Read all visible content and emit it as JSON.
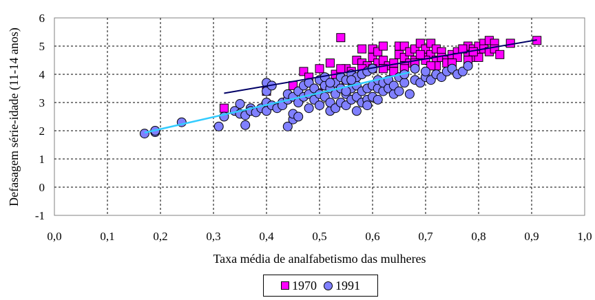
{
  "chart_data": {
    "type": "scatter",
    "title": "",
    "xlabel": "Taxa média de analfabetismo das mulheres",
    "ylabel": "Defasagem série-idade (11-14 anos)",
    "xlim": [
      0,
      1
    ],
    "ylim": [
      -1,
      6
    ],
    "x_ticks": [
      "0,0",
      "0,1",
      "0,2",
      "0,3",
      "0,4",
      "0,5",
      "0,6",
      "0,7",
      "0,8",
      "0,9",
      "1,0"
    ],
    "y_ticks": [
      "-1",
      "0",
      "1",
      "2",
      "3",
      "4",
      "5",
      "6"
    ],
    "grid": "dashed",
    "legend_position": "bottom",
    "series": [
      {
        "name": "1970",
        "marker": "square",
        "color": "#ff00ff",
        "trend_color": "#000066",
        "trend": [
          [
            0.32,
            3.33
          ],
          [
            0.91,
            5.22
          ]
        ],
        "x": [
          0.32,
          0.4,
          0.45,
          0.47,
          0.48,
          0.5,
          0.51,
          0.52,
          0.53,
          0.54,
          0.55,
          0.55,
          0.56,
          0.57,
          0.58,
          0.58,
          0.59,
          0.6,
          0.6,
          0.61,
          0.61,
          0.62,
          0.62,
          0.63,
          0.64,
          0.65,
          0.65,
          0.66,
          0.66,
          0.67,
          0.67,
          0.68,
          0.68,
          0.69,
          0.7,
          0.7,
          0.71,
          0.71,
          0.72,
          0.72,
          0.73,
          0.73,
          0.74,
          0.75,
          0.75,
          0.76,
          0.77,
          0.78,
          0.78,
          0.79,
          0.79,
          0.8,
          0.8,
          0.81,
          0.81,
          0.82,
          0.82,
          0.83,
          0.83,
          0.84,
          0.86,
          0.91,
          0.6,
          0.62,
          0.64,
          0.66,
          0.68,
          0.7,
          0.72,
          0.74,
          0.76,
          0.78,
          0.8,
          0.56,
          0.58,
          0.54,
          0.66,
          0.69,
          0.71,
          0.75,
          0.77,
          0.79
        ],
        "y": [
          2.8,
          3.4,
          3.6,
          4.1,
          3.9,
          4.2,
          3.6,
          4.4,
          4.0,
          5.3,
          3.8,
          4.2,
          4.1,
          4.5,
          4.9,
          4.4,
          4.3,
          4.9,
          4.6,
          4.8,
          4.4,
          5.0,
          4.5,
          4.3,
          4.4,
          4.7,
          5.0,
          4.6,
          5.0,
          4.8,
          4.4,
          4.5,
          4.9,
          5.1,
          4.6,
          4.9,
          4.7,
          5.1,
          4.5,
          4.9,
          4.8,
          4.6,
          4.5,
          4.7,
          4.2,
          4.8,
          4.9,
          4.7,
          5.0,
          4.9,
          4.6,
          5.0,
          4.7,
          5.1,
          4.9,
          5.2,
          4.8,
          5.1,
          4.9,
          4.7,
          5.1,
          5.2,
          4.2,
          4.2,
          4.1,
          4.3,
          4.4,
          4.5,
          4.3,
          4.4,
          4.6,
          4.5,
          4.6,
          3.9,
          4.2,
          4.2,
          4.2,
          4.7,
          4.3,
          4.4,
          4.9,
          4.8
        ]
      },
      {
        "name": "1991",
        "marker": "circle",
        "color": "#8080ff",
        "trend_color": "#33ccff",
        "trend": [
          [
            0.17,
            1.93
          ],
          [
            0.67,
            4.07
          ]
        ],
        "x": [
          0.17,
          0.19,
          0.19,
          0.24,
          0.31,
          0.32,
          0.34,
          0.35,
          0.35,
          0.36,
          0.36,
          0.37,
          0.37,
          0.38,
          0.39,
          0.4,
          0.4,
          0.4,
          0.4,
          0.41,
          0.41,
          0.42,
          0.43,
          0.43,
          0.44,
          0.44,
          0.44,
          0.45,
          0.45,
          0.45,
          0.46,
          0.46,
          0.46,
          0.47,
          0.47,
          0.48,
          0.48,
          0.48,
          0.49,
          0.49,
          0.5,
          0.5,
          0.5,
          0.51,
          0.51,
          0.51,
          0.52,
          0.52,
          0.52,
          0.53,
          0.53,
          0.53,
          0.54,
          0.54,
          0.54,
          0.55,
          0.55,
          0.55,
          0.56,
          0.56,
          0.56,
          0.57,
          0.57,
          0.57,
          0.58,
          0.58,
          0.58,
          0.59,
          0.59,
          0.59,
          0.6,
          0.6,
          0.6,
          0.61,
          0.61,
          0.62,
          0.62,
          0.63,
          0.63,
          0.64,
          0.64,
          0.65,
          0.65,
          0.66,
          0.66,
          0.67,
          0.68,
          0.68,
          0.69,
          0.7,
          0.7,
          0.71,
          0.72,
          0.73,
          0.74,
          0.75,
          0.76,
          0.77,
          0.78,
          0.52,
          0.55,
          0.57,
          0.59,
          0.61,
          0.56
        ],
        "y": [
          1.9,
          1.95,
          2.0,
          2.3,
          2.15,
          2.5,
          2.7,
          2.6,
          2.95,
          2.2,
          2.55,
          2.8,
          2.7,
          2.65,
          2.8,
          3.0,
          3.4,
          3.7,
          2.7,
          2.9,
          3.6,
          2.8,
          3.0,
          2.9,
          2.15,
          3.1,
          3.3,
          2.4,
          2.6,
          3.2,
          2.5,
          3.4,
          3.0,
          3.2,
          3.6,
          2.8,
          3.3,
          3.7,
          3.1,
          3.5,
          3.3,
          3.8,
          2.9,
          3.2,
          3.6,
          3.9,
          2.7,
          3.0,
          3.5,
          2.8,
          3.3,
          3.7,
          3.0,
          3.5,
          3.9,
          2.9,
          3.3,
          3.8,
          3.1,
          3.5,
          4.0,
          3.2,
          3.6,
          3.9,
          3.0,
          3.4,
          4.0,
          3.1,
          3.5,
          4.1,
          3.2,
          3.6,
          4.2,
          3.5,
          3.8,
          3.4,
          3.7,
          3.5,
          3.8,
          3.3,
          3.6,
          3.4,
          3.9,
          3.7,
          4.0,
          3.3,
          3.8,
          4.2,
          3.7,
          3.9,
          4.1,
          3.8,
          4.0,
          3.9,
          4.1,
          4.2,
          4.0,
          4.1,
          4.3,
          3.7,
          3.4,
          2.7,
          2.9,
          3.1,
          3.8
        ]
      }
    ]
  }
}
